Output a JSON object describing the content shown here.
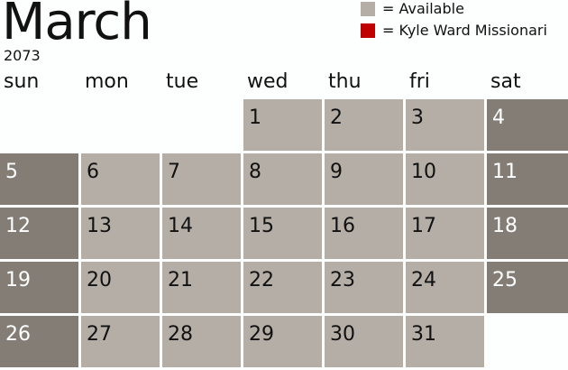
{
  "title": "March",
  "year": "2073",
  "legend": [
    {
      "label": "= Available",
      "color": "#b5aea6"
    },
    {
      "label": "= Kyle Ward Missionari",
      "color": "#c00000"
    }
  ],
  "days": [
    "sun",
    "mon",
    "tue",
    "wed",
    "thu",
    "fri",
    "sat"
  ],
  "first_weekday": 3,
  "num_days": 31,
  "colors": {
    "available": "#b5aea6",
    "weekend": "#847d75"
  }
}
